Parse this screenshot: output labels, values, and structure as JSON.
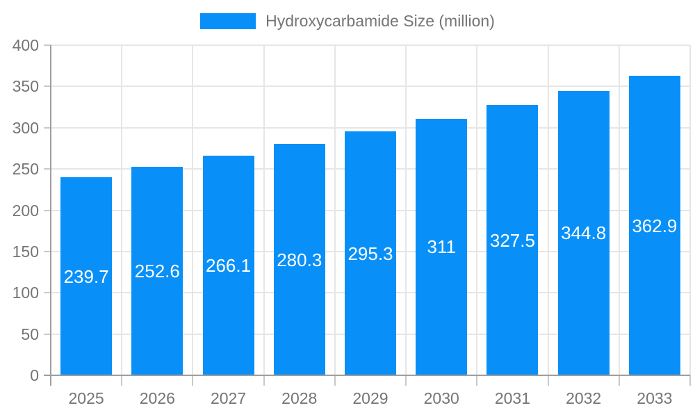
{
  "chart_data": {
    "type": "bar",
    "title": "Hydroxycarbamide Size (million)",
    "legend": {
      "label": "Hydroxycarbamide Size (million)",
      "position": "top"
    },
    "categories": [
      "2025",
      "2026",
      "2027",
      "2028",
      "2029",
      "2030",
      "2031",
      "2032",
      "2033"
    ],
    "series": [
      {
        "name": "Hydroxycarbamide Size (million)",
        "values": [
          239.7,
          252.6,
          266.1,
          280.3,
          295.3,
          311,
          327.5,
          344.8,
          362.9
        ],
        "labels": [
          "239.7",
          "252.6",
          "266.1",
          "280.3",
          "295.3",
          "311",
          "327.5",
          "344.8",
          "362.9"
        ]
      }
    ],
    "xlabel": "",
    "ylabel": "",
    "ylim": [
      0,
      400
    ],
    "ytick_step": 50,
    "yticks": [
      0,
      50,
      100,
      150,
      200,
      250,
      300,
      350,
      400
    ],
    "ytick_labels": [
      "0",
      "50",
      "100",
      "150",
      "200",
      "250",
      "300",
      "350",
      "400"
    ],
    "grid": true,
    "value_labels_position": "inside-center"
  },
  "colors": {
    "bar": "#0890f8",
    "axis_line": "#9e9e9e",
    "grid_line": "#e6e6e6",
    "tick_line": "#c9c9c9",
    "axis_text": "#757575",
    "bar_label_text": "#ffffff",
    "background": "#ffffff"
  }
}
